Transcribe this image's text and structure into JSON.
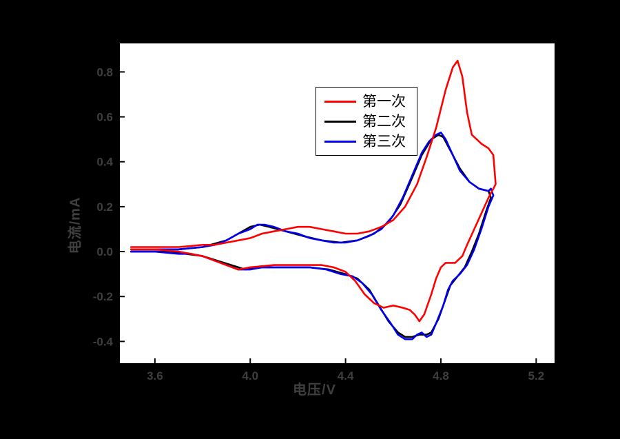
{
  "figure": {
    "background": "#000000",
    "plot_background": "#ffffff",
    "axis_color": "#000000",
    "outer_text_color": "#3f3f3f"
  },
  "chart_data": {
    "type": "line",
    "title": "",
    "xlabel": "电压/V",
    "ylabel": "电流/mA",
    "xlim": [
      3.45,
      5.28
    ],
    "ylim": [
      -0.5,
      0.93
    ],
    "xticks": [
      3.6,
      4.0,
      4.4,
      4.8,
      5.2
    ],
    "yticks": [
      -0.4,
      -0.2,
      0.0,
      0.2,
      0.4,
      0.6,
      0.8
    ],
    "grid": false,
    "legend_position": "upper-center-inside",
    "series": [
      {
        "name": "第二次",
        "color": "#000000",
        "points": [
          [
            3.5,
            0.01
          ],
          [
            3.7,
            0.01
          ],
          [
            3.8,
            0.02
          ],
          [
            3.9,
            0.05
          ],
          [
            3.95,
            0.08
          ],
          [
            4.0,
            0.11
          ],
          [
            4.04,
            0.12
          ],
          [
            4.08,
            0.11
          ],
          [
            4.15,
            0.09
          ],
          [
            4.22,
            0.07
          ],
          [
            4.3,
            0.05
          ],
          [
            4.38,
            0.04
          ],
          [
            4.45,
            0.05
          ],
          [
            4.52,
            0.08
          ],
          [
            4.58,
            0.13
          ],
          [
            4.63,
            0.21
          ],
          [
            4.68,
            0.33
          ],
          [
            4.72,
            0.43
          ],
          [
            4.76,
            0.5
          ],
          [
            4.79,
            0.52
          ],
          [
            4.81,
            0.51
          ],
          [
            4.84,
            0.45
          ],
          [
            4.88,
            0.37
          ],
          [
            4.92,
            0.31
          ],
          [
            4.96,
            0.28
          ],
          [
            5.0,
            0.27
          ],
          [
            5.01,
            0.24
          ],
          [
            4.99,
            0.18
          ],
          [
            4.96,
            0.08
          ],
          [
            4.93,
            0.0
          ],
          [
            4.9,
            -0.07
          ],
          [
            4.87,
            -0.11
          ],
          [
            4.84,
            -0.15
          ],
          [
            4.82,
            -0.21
          ],
          [
            4.79,
            -0.3
          ],
          [
            4.76,
            -0.36
          ],
          [
            4.74,
            -0.37
          ],
          [
            4.71,
            -0.37
          ],
          [
            4.68,
            -0.38
          ],
          [
            4.65,
            -0.38
          ],
          [
            4.62,
            -0.36
          ],
          [
            4.58,
            -0.31
          ],
          [
            4.54,
            -0.24
          ],
          [
            4.5,
            -0.17
          ],
          [
            4.45,
            -0.12
          ],
          [
            4.4,
            -0.1
          ],
          [
            4.33,
            -0.08
          ],
          [
            4.25,
            -0.07
          ],
          [
            4.15,
            -0.07
          ],
          [
            4.05,
            -0.07
          ],
          [
            3.98,
            -0.08
          ],
          [
            3.92,
            -0.06
          ],
          [
            3.86,
            -0.04
          ],
          [
            3.8,
            -0.02
          ],
          [
            3.73,
            -0.01
          ],
          [
            3.65,
            0.0
          ],
          [
            3.5,
            0.0
          ]
        ]
      },
      {
        "name": "第三次",
        "color": "#0000ee",
        "points": [
          [
            3.5,
            0.01
          ],
          [
            3.6,
            0.01
          ],
          [
            3.7,
            0.01
          ],
          [
            3.8,
            0.02
          ],
          [
            3.85,
            0.03
          ],
          [
            3.9,
            0.05
          ],
          [
            3.95,
            0.08
          ],
          [
            4.0,
            0.1
          ],
          [
            4.03,
            0.12
          ],
          [
            4.06,
            0.12
          ],
          [
            4.1,
            0.11
          ],
          [
            4.15,
            0.09
          ],
          [
            4.2,
            0.08
          ],
          [
            4.25,
            0.06
          ],
          [
            4.3,
            0.05
          ],
          [
            4.35,
            0.04
          ],
          [
            4.4,
            0.04
          ],
          [
            4.45,
            0.05
          ],
          [
            4.5,
            0.07
          ],
          [
            4.55,
            0.1
          ],
          [
            4.6,
            0.16
          ],
          [
            4.64,
            0.24
          ],
          [
            4.68,
            0.34
          ],
          [
            4.72,
            0.44
          ],
          [
            4.75,
            0.49
          ],
          [
            4.78,
            0.52
          ],
          [
            4.8,
            0.53
          ],
          [
            4.82,
            0.5
          ],
          [
            4.85,
            0.43
          ],
          [
            4.88,
            0.36
          ],
          [
            4.92,
            0.31
          ],
          [
            4.96,
            0.28
          ],
          [
            5.0,
            0.27
          ],
          [
            5.01,
            0.28
          ],
          [
            5.02,
            0.25
          ],
          [
            5.0,
            0.2
          ],
          [
            4.97,
            0.1
          ],
          [
            4.94,
            0.01
          ],
          [
            4.91,
            -0.06
          ],
          [
            4.88,
            -0.1
          ],
          [
            4.85,
            -0.13
          ],
          [
            4.83,
            -0.17
          ],
          [
            4.81,
            -0.24
          ],
          [
            4.78,
            -0.32
          ],
          [
            4.76,
            -0.37
          ],
          [
            4.74,
            -0.38
          ],
          [
            4.72,
            -0.36
          ],
          [
            4.7,
            -0.37
          ],
          [
            4.68,
            -0.39
          ],
          [
            4.65,
            -0.39
          ],
          [
            4.62,
            -0.37
          ],
          [
            4.59,
            -0.32
          ],
          [
            4.55,
            -0.26
          ],
          [
            4.51,
            -0.19
          ],
          [
            4.47,
            -0.14
          ],
          [
            4.43,
            -0.11
          ],
          [
            4.38,
            -0.1
          ],
          [
            4.32,
            -0.08
          ],
          [
            4.25,
            -0.07
          ],
          [
            4.15,
            -0.07
          ],
          [
            4.05,
            -0.07
          ],
          [
            4.0,
            -0.08
          ],
          [
            3.95,
            -0.08
          ],
          [
            3.9,
            -0.06
          ],
          [
            3.85,
            -0.04
          ],
          [
            3.8,
            -0.02
          ],
          [
            3.75,
            -0.01
          ],
          [
            3.7,
            -0.01
          ],
          [
            3.6,
            0.0
          ],
          [
            3.5,
            0.0
          ]
        ]
      },
      {
        "name": "第一次",
        "color": "#ff0000",
        "points": [
          [
            3.5,
            0.02
          ],
          [
            3.6,
            0.02
          ],
          [
            3.7,
            0.02
          ],
          [
            3.8,
            0.03
          ],
          [
            3.85,
            0.03
          ],
          [
            3.9,
            0.04
          ],
          [
            3.95,
            0.05
          ],
          [
            4.0,
            0.06
          ],
          [
            4.05,
            0.08
          ],
          [
            4.1,
            0.09
          ],
          [
            4.15,
            0.1
          ],
          [
            4.2,
            0.11
          ],
          [
            4.25,
            0.11
          ],
          [
            4.3,
            0.1
          ],
          [
            4.35,
            0.09
          ],
          [
            4.4,
            0.08
          ],
          [
            4.45,
            0.08
          ],
          [
            4.5,
            0.09
          ],
          [
            4.55,
            0.11
          ],
          [
            4.6,
            0.14
          ],
          [
            4.65,
            0.2
          ],
          [
            4.7,
            0.3
          ],
          [
            4.74,
            0.42
          ],
          [
            4.78,
            0.55
          ],
          [
            4.82,
            0.72
          ],
          [
            4.85,
            0.82
          ],
          [
            4.87,
            0.85
          ],
          [
            4.89,
            0.78
          ],
          [
            4.91,
            0.62
          ],
          [
            4.93,
            0.52
          ],
          [
            4.95,
            0.5
          ],
          [
            4.97,
            0.48
          ],
          [
            5.0,
            0.46
          ],
          [
            5.02,
            0.43
          ],
          [
            5.03,
            0.3
          ],
          [
            5.02,
            0.28
          ],
          [
            5.0,
            0.24
          ],
          [
            4.97,
            0.17
          ],
          [
            4.94,
            0.1
          ],
          [
            4.91,
            0.03
          ],
          [
            4.89,
            -0.02
          ],
          [
            4.86,
            -0.05
          ],
          [
            4.84,
            -0.05
          ],
          [
            4.82,
            -0.05
          ],
          [
            4.8,
            -0.07
          ],
          [
            4.78,
            -0.12
          ],
          [
            4.76,
            -0.19
          ],
          [
            4.73,
            -0.28
          ],
          [
            4.71,
            -0.31
          ],
          [
            4.69,
            -0.28
          ],
          [
            4.67,
            -0.26
          ],
          [
            4.64,
            -0.25
          ],
          [
            4.6,
            -0.24
          ],
          [
            4.56,
            -0.25
          ],
          [
            4.52,
            -0.23
          ],
          [
            4.48,
            -0.19
          ],
          [
            4.44,
            -0.13
          ],
          [
            4.4,
            -0.09
          ],
          [
            4.35,
            -0.07
          ],
          [
            4.3,
            -0.06
          ],
          [
            4.2,
            -0.06
          ],
          [
            4.1,
            -0.06
          ],
          [
            4.0,
            -0.07
          ],
          [
            3.95,
            -0.08
          ],
          [
            3.9,
            -0.06
          ],
          [
            3.85,
            -0.04
          ],
          [
            3.8,
            -0.02
          ],
          [
            3.75,
            -0.01
          ],
          [
            3.7,
            0.0
          ],
          [
            3.6,
            0.01
          ],
          [
            3.5,
            0.01
          ]
        ]
      }
    ],
    "legend_order": [
      "第一次",
      "第二次",
      "第三次"
    ],
    "legend_colors": [
      "#ff0000",
      "#000000",
      "#0000ee"
    ]
  }
}
